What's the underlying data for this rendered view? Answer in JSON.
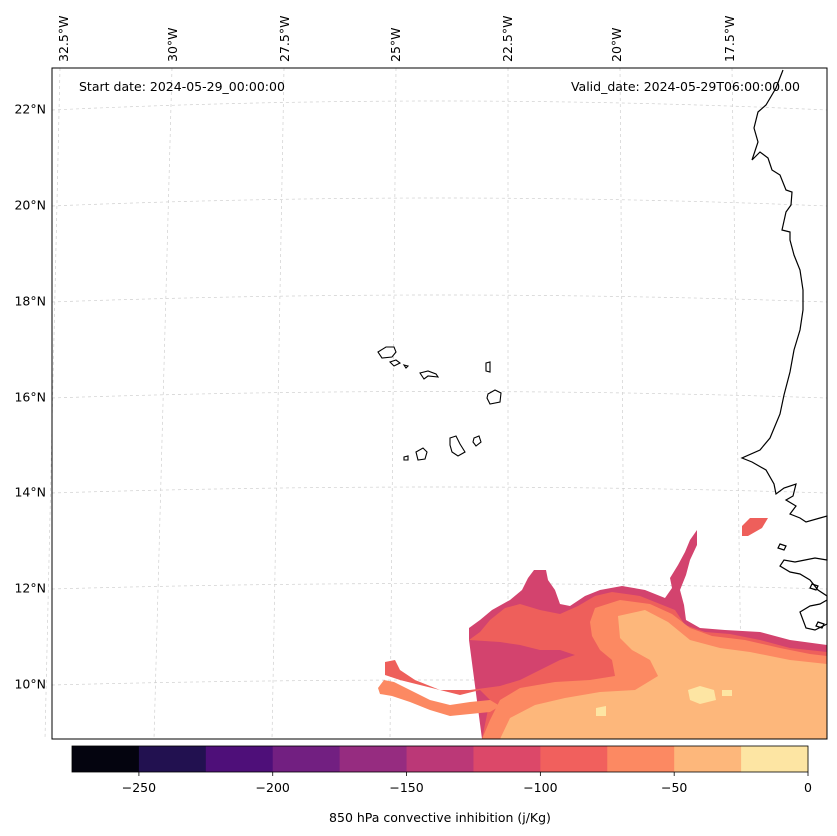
{
  "map": {
    "start_date": "Start date: 2024-05-29_00:00:00",
    "valid_date": "Valid_date: 2024-05-29T06:00:00.00",
    "lon_labels": [
      "32.5°W",
      "30°W",
      "27.5°W",
      "25°W",
      "22.5°W",
      "20°W",
      "17.5°W"
    ],
    "lat_labels": [
      "22°N",
      "20°N",
      "18°N",
      "16°N",
      "14°N",
      "12°N",
      "10°N"
    ],
    "features": [
      "Cape Verde islands",
      "West African coastline"
    ]
  },
  "colorbar": {
    "label": "850 hPa convective inhibition (j/Kg)",
    "tick_labels": [
      "−250",
      "−200",
      "−150",
      "−100",
      "−50",
      "0"
    ],
    "tick_values": [
      -250,
      -200,
      -150,
      -100,
      -50,
      0
    ],
    "vmin": -275,
    "vmax": 0,
    "levels": [
      -275,
      -250,
      -225,
      -200,
      -175,
      -150,
      -125,
      -100,
      -75,
      -50,
      -25,
      0
    ],
    "colors": [
      "#04040f",
      "#221150",
      "#4e0f79",
      "#721f81",
      "#962c80",
      "#bb3877",
      "#dc4869",
      "#f1605d",
      "#fc8962",
      "#fdb77b",
      "#fde5a3"
    ]
  }
}
